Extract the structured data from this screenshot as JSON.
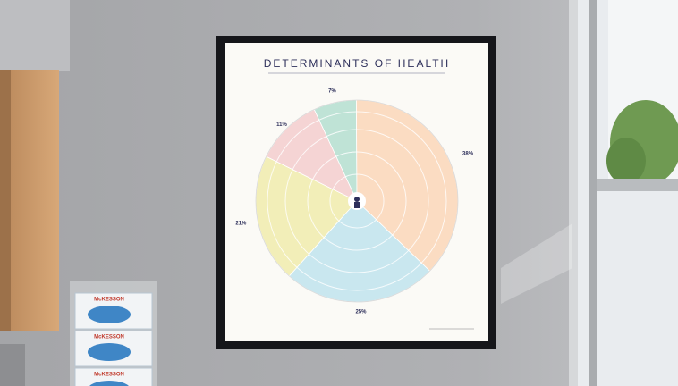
{
  "poster": {
    "title": "DETERMINANTS OF HEALTH",
    "chart": {
      "type": "pie",
      "values": [
        7,
        38,
        25,
        21,
        11
      ],
      "value_labels": [
        "7%",
        "38%",
        "25%",
        "21%",
        "11%"
      ],
      "colors": [
        "#bfe3d6",
        "#fbdcc2",
        "#c9e7ef",
        "#f2eeb8",
        "#f5d4d4"
      ]
    }
  },
  "boxes": [
    "McKESSON",
    "McKESSON",
    "McKESSON"
  ]
}
